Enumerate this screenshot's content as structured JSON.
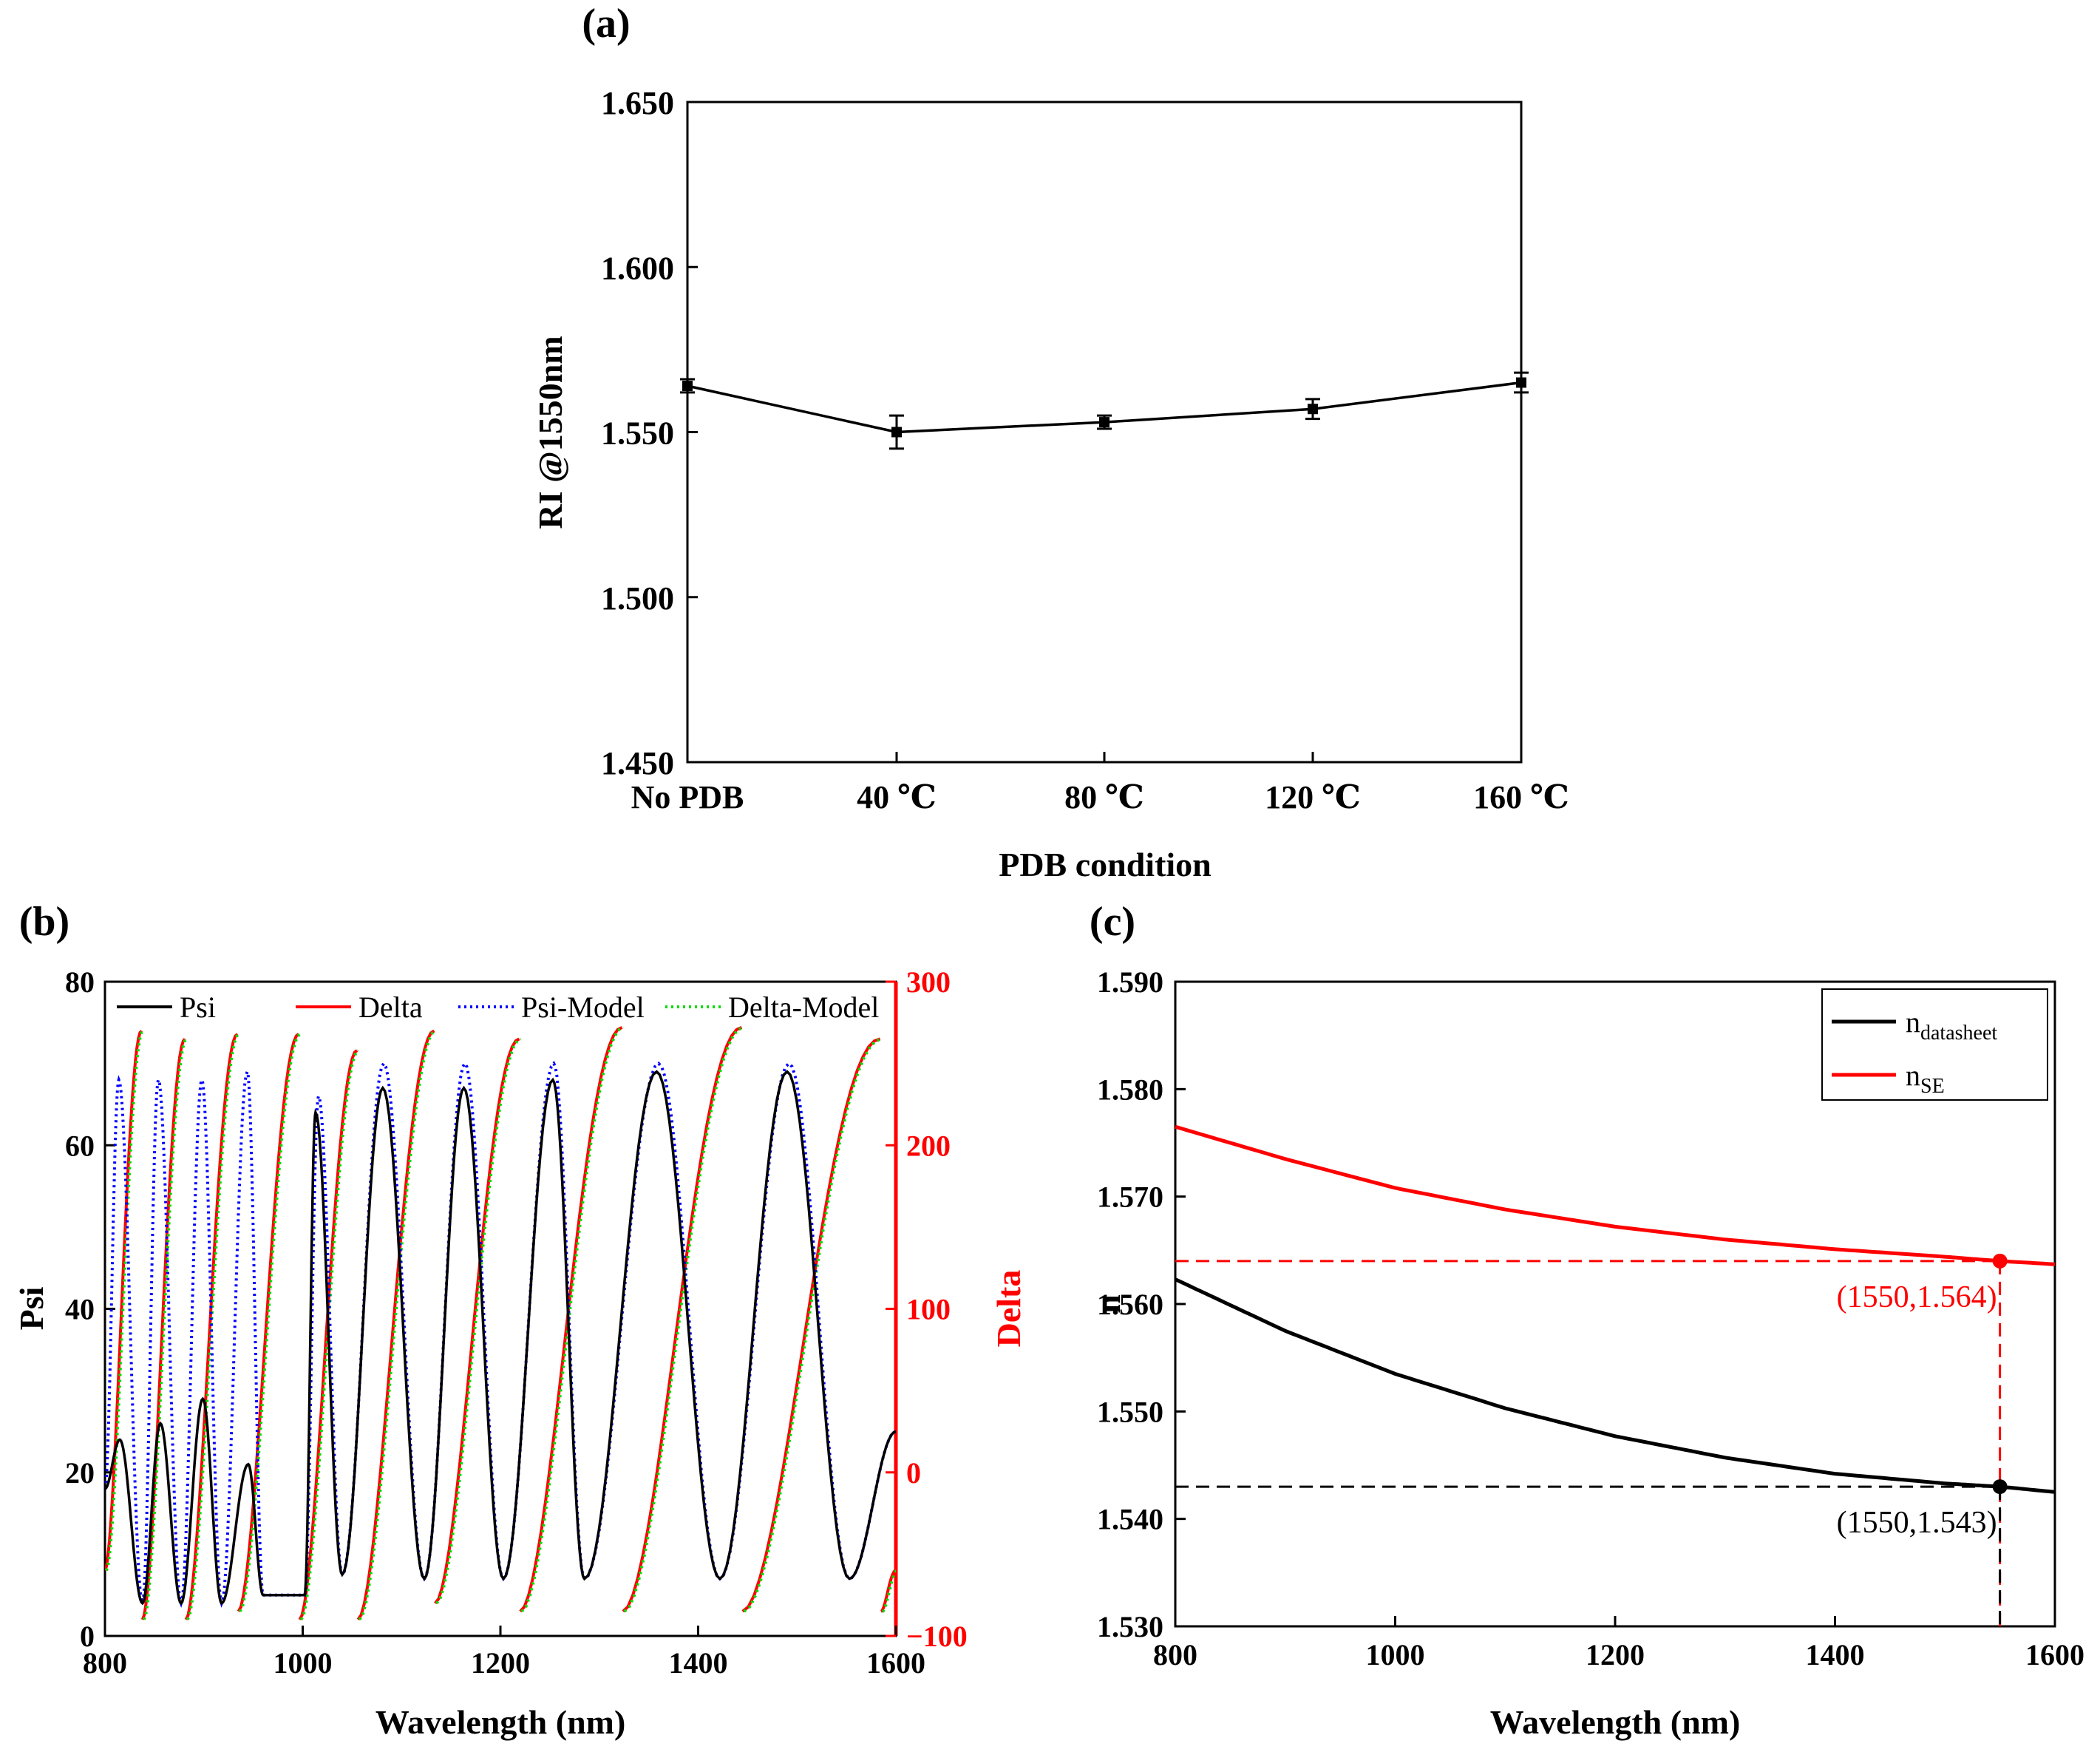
{
  "chart_data": [
    {
      "panel": "(a)",
      "type": "line",
      "title": "",
      "xlabel": "PDB condition",
      "ylabel": "RI @1550nm",
      "categories": [
        "No PDB",
        "40 ℃",
        "80 ℃",
        "120 ℃",
        "160 ℃"
      ],
      "values": [
        1.564,
        1.55,
        1.553,
        1.557,
        1.565
      ],
      "errors": [
        0.002,
        0.005,
        0.002,
        0.003,
        0.003
      ],
      "ylim": [
        1.45,
        1.65
      ],
      "yticks": [
        "1.450",
        "1.500",
        "1.550",
        "1.600",
        "1.650"
      ],
      "grid": false,
      "color": "#000000"
    },
    {
      "panel": "(b)",
      "type": "line",
      "xlabel": "Wavelength (nm)",
      "ylabel": "Psi",
      "ylabel_right": "Delta",
      "xlim": [
        800,
        1600
      ],
      "ylim": [
        0,
        80
      ],
      "ylim_right": [
        -100,
        300
      ],
      "xticks": [
        "800",
        "1000",
        "1200",
        "1400",
        "1600"
      ],
      "yticks": [
        "0",
        "20",
        "40",
        "60",
        "80"
      ],
      "yticks_right": [
        "−100",
        "0",
        "100",
        "200",
        "300"
      ],
      "legend_position": "top",
      "psi_minima": [
        {
          "x": 800,
          "y": 18
        },
        {
          "x": 838,
          "y": 4
        },
        {
          "x": 877,
          "y": 4
        },
        {
          "x": 918,
          "y": 4
        },
        {
          "x": 960,
          "y": 5
        },
        {
          "x": 1002,
          "y": 5
        },
        {
          "x": 1040,
          "y": 7.5
        },
        {
          "x": 1123,
          "y": 7
        },
        {
          "x": 1203,
          "y": 7
        },
        {
          "x": 1285,
          "y": 7
        },
        {
          "x": 1422,
          "y": 7
        },
        {
          "x": 1553,
          "y": 7
        },
        {
          "x": 1600,
          "y": 25
        }
      ],
      "psi_maxima": [
        {
          "x": 815,
          "y": 24
        },
        {
          "x": 856,
          "y": 26
        },
        {
          "x": 899,
          "y": 29
        },
        {
          "x": 945,
          "y": 21
        },
        {
          "x": 1013,
          "y": 64
        },
        {
          "x": 1081,
          "y": 67
        },
        {
          "x": 1163,
          "y": 67
        },
        {
          "x": 1253,
          "y": 68
        },
        {
          "x": 1358,
          "y": 69
        },
        {
          "x": 1490,
          "y": 69
        }
      ],
      "psi_model_maxima": [
        {
          "x": 814,
          "y": 68
        },
        {
          "x": 854,
          "y": 68
        },
        {
          "x": 898,
          "y": 68
        },
        {
          "x": 944,
          "y": 69
        },
        {
          "x": 1016,
          "y": 66
        },
        {
          "x": 1082,
          "y": 70
        },
        {
          "x": 1164,
          "y": 70
        },
        {
          "x": 1254,
          "y": 70
        },
        {
          "x": 1360,
          "y": 70
        },
        {
          "x": 1492,
          "y": 70
        }
      ],
      "delta_sawtooth": [
        {
          "start": 800,
          "end": 837,
          "lo": -60,
          "hi": 270
        },
        {
          "start": 838,
          "end": 881,
          "lo": -90,
          "hi": 265
        },
        {
          "start": 882,
          "end": 934,
          "lo": -90,
          "hi": 268
        },
        {
          "start": 935,
          "end": 996,
          "lo": -85,
          "hi": 268
        },
        {
          "start": 997,
          "end": 1055,
          "lo": -90,
          "hi": 258
        },
        {
          "start": 1056,
          "end": 1133,
          "lo": -90,
          "hi": 270
        },
        {
          "start": 1134,
          "end": 1219,
          "lo": -80,
          "hi": 265
        },
        {
          "start": 1220,
          "end": 1323,
          "lo": -85,
          "hi": 272
        },
        {
          "start": 1324,
          "end": 1444,
          "lo": -85,
          "hi": 272
        },
        {
          "start": 1445,
          "end": 1584,
          "lo": -85,
          "hi": 265
        },
        {
          "start": 1585,
          "end": 1600,
          "lo": -85,
          "hi": -60
        }
      ],
      "series": [
        {
          "name": "Psi",
          "color": "#000000",
          "style": "solid"
        },
        {
          "name": "Delta",
          "color": "#ff0000",
          "style": "solid"
        },
        {
          "name": "Psi-Model",
          "color": "#0000ff",
          "style": "dotted"
        },
        {
          "name": "Delta-Model",
          "color": "#00dd00",
          "style": "dotted"
        }
      ]
    },
    {
      "panel": "(c)",
      "type": "line",
      "xlabel": "Wavelength (nm)",
      "ylabel": "n",
      "xlim": [
        800,
        1600
      ],
      "ylim": [
        1.53,
        1.59
      ],
      "xticks": [
        "800",
        "1000",
        "1200",
        "1400",
        "1600"
      ],
      "yticks": [
        "1.530",
        "1.540",
        "1.550",
        "1.560",
        "1.570",
        "1.580",
        "1.590"
      ],
      "legend_position": "top-right",
      "series": [
        {
          "name": "n",
          "subscript": "datasheet",
          "color": "#000000",
          "x": [
            800,
            900,
            1000,
            1100,
            1200,
            1300,
            1400,
            1500,
            1550,
            1600
          ],
          "y": [
            1.5623,
            1.5575,
            1.5535,
            1.5503,
            1.5477,
            1.5457,
            1.5442,
            1.5433,
            1.543,
            1.5425
          ]
        },
        {
          "name": "n",
          "subscript": "SE",
          "color": "#ff0000",
          "x": [
            800,
            900,
            1000,
            1100,
            1200,
            1300,
            1400,
            1500,
            1550,
            1600
          ],
          "y": [
            1.5765,
            1.5735,
            1.5708,
            1.5688,
            1.5672,
            1.566,
            1.5651,
            1.5644,
            1.564,
            1.5637
          ]
        }
      ],
      "annotations": [
        {
          "x": 1550,
          "y": 1.564,
          "label": "(1550,1.564)",
          "color": "#ff0000"
        },
        {
          "x": 1550,
          "y": 1.543,
          "label": "(1550,1.543)",
          "color": "#000000"
        }
      ]
    }
  ]
}
